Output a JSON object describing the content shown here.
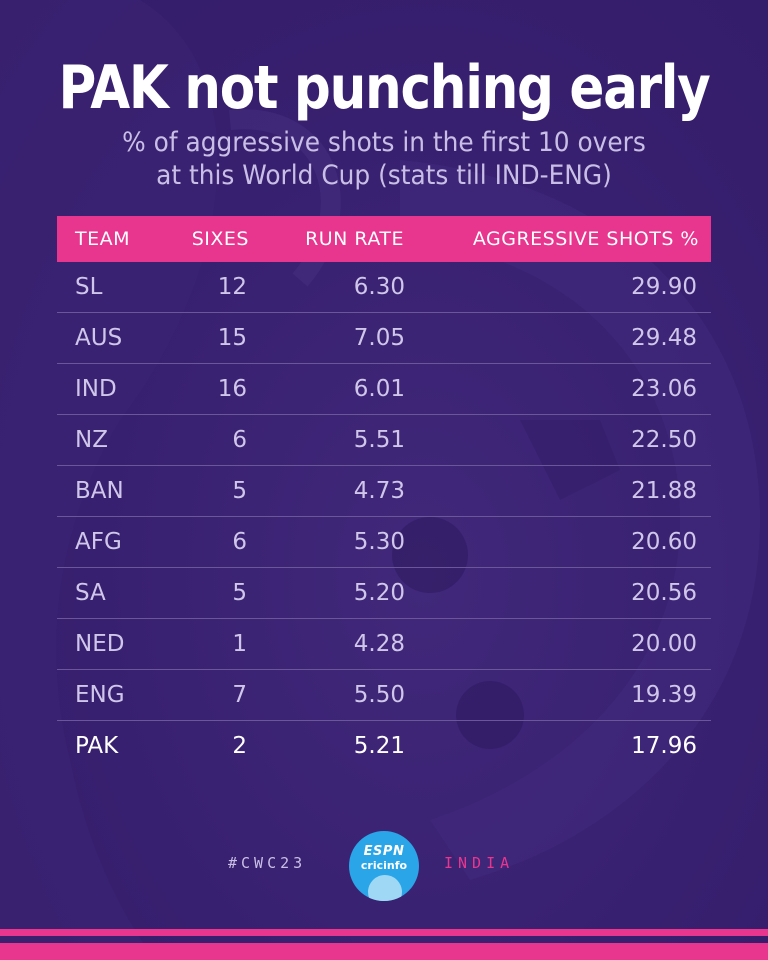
{
  "title": "PAK not punching early",
  "subtitle_line1": "% of aggressive shots in the first 10 overs",
  "subtitle_line2": "at this World Cup (stats till IND-ENG)",
  "colors": {
    "background": "#3a2270",
    "accent": "#e8368f",
    "header_text": "#ffffff",
    "row_text": "#cfc6ea",
    "highlight_text": "#ffffff",
    "logo": "#2aa5e8"
  },
  "chart_data": {
    "type": "table",
    "columns": [
      "TEAM",
      "SIXES",
      "RUN RATE",
      "AGGRESSIVE SHOTS %"
    ],
    "rows": [
      {
        "team": "SL",
        "sixes": "12",
        "run_rate": "6.30",
        "aggressive": "29.90"
      },
      {
        "team": "AUS",
        "sixes": "15",
        "run_rate": "7.05",
        "aggressive": "29.48"
      },
      {
        "team": "IND",
        "sixes": "16",
        "run_rate": "6.01",
        "aggressive": "23.06"
      },
      {
        "team": "NZ",
        "sixes": "6",
        "run_rate": "5.51",
        "aggressive": "22.50"
      },
      {
        "team": "BAN",
        "sixes": "5",
        "run_rate": "4.73",
        "aggressive": "21.88"
      },
      {
        "team": "AFG",
        "sixes": "6",
        "run_rate": "5.30",
        "aggressive": "20.60"
      },
      {
        "team": "SA",
        "sixes": "5",
        "run_rate": "5.20",
        "aggressive": "20.56"
      },
      {
        "team": "NED",
        "sixes": "1",
        "run_rate": "4.28",
        "aggressive": "20.00"
      },
      {
        "team": "ENG",
        "sixes": "7",
        "run_rate": "5.50",
        "aggressive": "19.39"
      },
      {
        "team": "PAK",
        "sixes": "2",
        "run_rate": "5.21",
        "aggressive": "17.96"
      }
    ],
    "highlight_team": "PAK"
  },
  "footer": {
    "hashtag": "#CWC23",
    "logo_line1": "ESPN",
    "logo_line2": "cricinfo",
    "region": "INDIA"
  }
}
